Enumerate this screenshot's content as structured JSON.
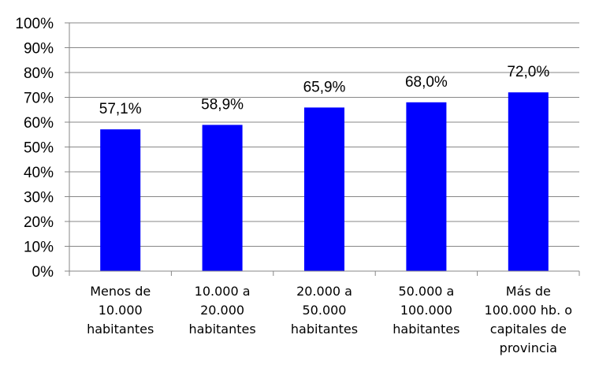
{
  "chart_data": {
    "type": "bar",
    "categories": [
      [
        "Menos de",
        "10.000",
        "habitantes"
      ],
      [
        "10.000 a",
        "20.000",
        "habitantes"
      ],
      [
        "20.000 a",
        "50.000",
        "habitantes"
      ],
      [
        "50.000 a",
        "100.000",
        "habitantes"
      ],
      [
        "Más de",
        "100.000 hb. o",
        "capitales de",
        "provincia"
      ]
    ],
    "values": [
      57.1,
      58.9,
      65.9,
      68.0,
      72.0
    ],
    "data_labels": [
      "57,1%",
      "58,9%",
      "65,9%",
      "68,0%",
      "72,0%"
    ],
    "yticks": [
      "0%",
      "10%",
      "20%",
      "30%",
      "40%",
      "50%",
      "60%",
      "70%",
      "80%",
      "90%",
      "100%"
    ],
    "ylim": [
      0,
      100
    ],
    "grid": true,
    "legend": "none",
    "colors": {
      "bar": "#0000ff",
      "grid": "#878787",
      "axis": "#878787"
    }
  }
}
